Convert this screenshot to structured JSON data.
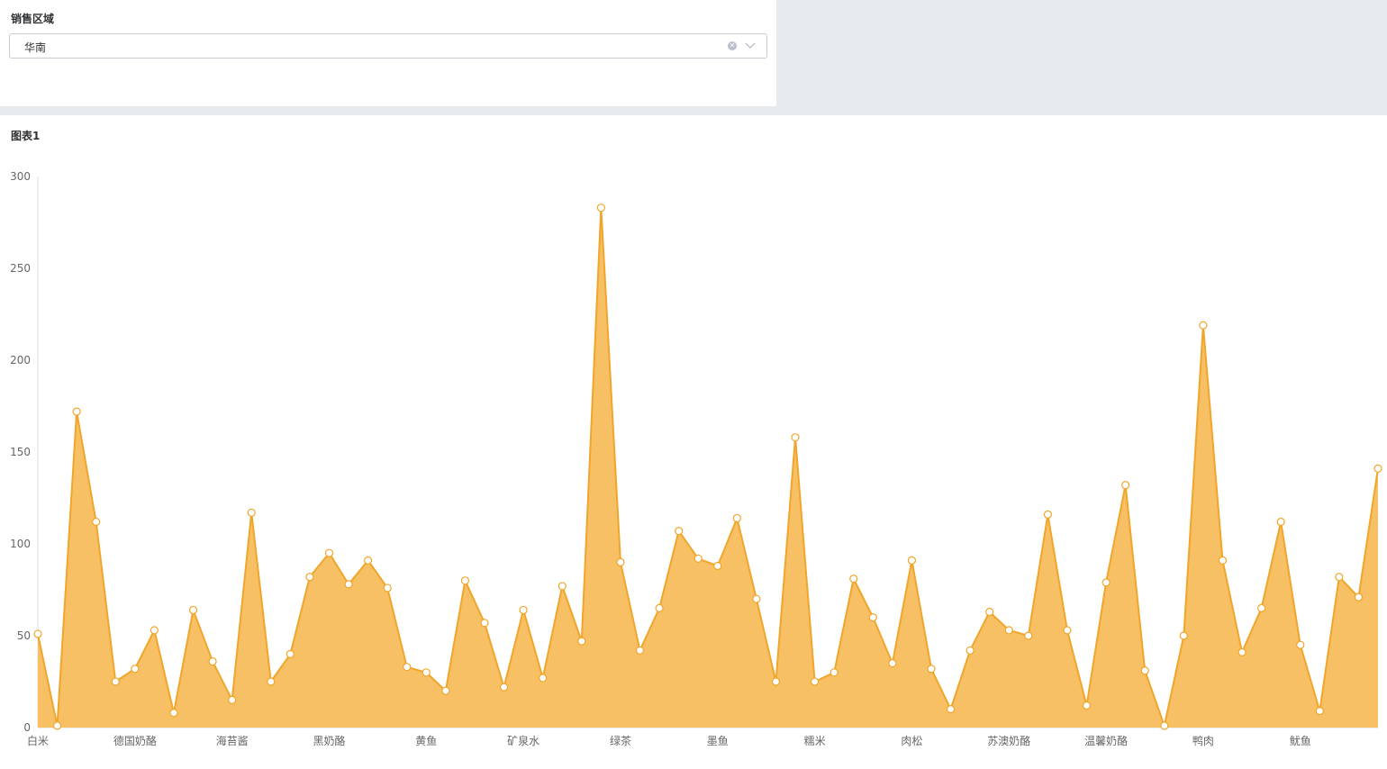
{
  "filter": {
    "label": "销售区域",
    "selected": "华南"
  },
  "chart_title": "图表1",
  "colors": {
    "area_fill": "#f7c064",
    "line": "#f0a52b",
    "point_fill": "#ffffff",
    "axis": "#dcdcdc"
  },
  "chart_data": {
    "type": "area",
    "title": "图表1",
    "xlabel": "",
    "ylabel": "",
    "ylim": [
      0,
      300
    ],
    "yticks": [
      0,
      50,
      100,
      150,
      200,
      250,
      300
    ],
    "grid": false,
    "x_tick_labels": [
      {
        "index": 0,
        "label": "白米"
      },
      {
        "index": 5,
        "label": "德国奶酪"
      },
      {
        "index": 10,
        "label": "海苔酱"
      },
      {
        "index": 15,
        "label": "黑奶酪"
      },
      {
        "index": 20,
        "label": "黄鱼"
      },
      {
        "index": 25,
        "label": "矿泉水"
      },
      {
        "index": 30,
        "label": "绿茶"
      },
      {
        "index": 35,
        "label": "墨鱼"
      },
      {
        "index": 40,
        "label": "糯米"
      },
      {
        "index": 45,
        "label": "肉松"
      },
      {
        "index": 50,
        "label": "苏澳奶酪"
      },
      {
        "index": 55,
        "label": "温馨奶酪"
      },
      {
        "index": 60,
        "label": "鸭肉"
      },
      {
        "index": 65,
        "label": "鱿鱼"
      }
    ],
    "values": [
      51,
      1,
      172,
      112,
      25,
      32,
      53,
      8,
      64,
      36,
      15,
      117,
      25,
      40,
      82,
      95,
      78,
      91,
      76,
      33,
      30,
      20,
      80,
      57,
      22,
      64,
      27,
      77,
      47,
      283,
      90,
      42,
      65,
      107,
      92,
      88,
      114,
      70,
      25,
      158,
      25,
      30,
      81,
      60,
      35,
      91,
      32,
      10,
      42,
      63,
      53,
      50,
      116,
      53,
      12,
      79,
      132,
      31,
      1,
      50,
      219,
      91,
      41,
      65,
      112,
      45,
      9,
      82,
      71,
      141
    ]
  }
}
